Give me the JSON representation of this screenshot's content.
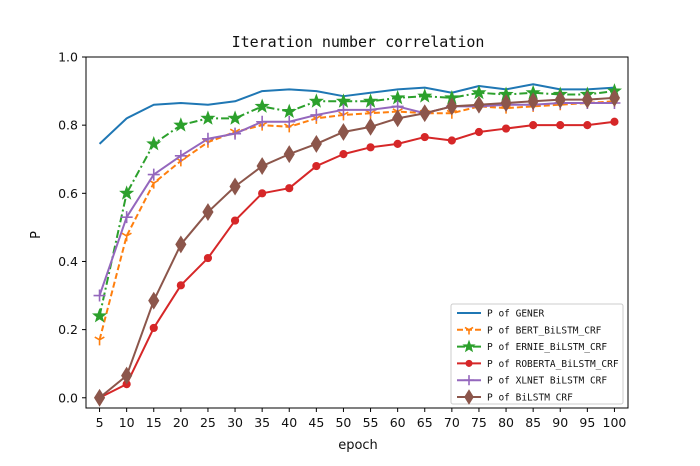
{
  "chart_data": {
    "type": "line",
    "title": "Iteration number correlation",
    "xlabel": "epoch",
    "ylabel": "P",
    "x": [
      5,
      10,
      15,
      20,
      25,
      30,
      35,
      40,
      45,
      50,
      55,
      60,
      65,
      70,
      75,
      80,
      85,
      90,
      95,
      100
    ],
    "xticks": [
      "5",
      "10",
      "15",
      "20",
      "25",
      "30",
      "35",
      "40",
      "45",
      "50",
      "55",
      "60",
      "65",
      "70",
      "75",
      "80",
      "85",
      "90",
      "95",
      "100"
    ],
    "yticks": [
      "0.0",
      "0.2",
      "0.4",
      "0.6",
      "0.8",
      "1.0"
    ],
    "ylim": [
      -0.03,
      1.0
    ],
    "grid": false,
    "legend_position": "lower-right",
    "series": [
      {
        "name": "P of GENER",
        "color": "#1f77b4",
        "line_style": "solid",
        "marker": "none",
        "values": [
          0.745,
          0.82,
          0.86,
          0.865,
          0.86,
          0.87,
          0.9,
          0.905,
          0.9,
          0.885,
          0.895,
          0.905,
          0.91,
          0.895,
          0.915,
          0.905,
          0.92,
          0.905,
          0.905,
          0.91
        ]
      },
      {
        "name": "P of BERT_BiLSTM_CRF",
        "color": "#ff7f0e",
        "line_style": "dashed",
        "marker": "tri_down",
        "values": [
          0.17,
          0.475,
          0.63,
          0.695,
          0.75,
          0.78,
          0.8,
          0.795,
          0.82,
          0.83,
          0.835,
          0.84,
          0.835,
          0.835,
          0.855,
          0.85,
          0.855,
          0.86,
          0.865,
          0.87
        ]
      },
      {
        "name": "P of ERNIE_BiLSTM_CRF",
        "color": "#2ca02c",
        "line_style": "dashdot",
        "marker": "star",
        "values": [
          0.24,
          0.6,
          0.745,
          0.8,
          0.82,
          0.82,
          0.855,
          0.84,
          0.87,
          0.87,
          0.87,
          0.88,
          0.885,
          0.88,
          0.895,
          0.89,
          0.895,
          0.89,
          0.89,
          0.9
        ]
      },
      {
        "name": "P of ROBERTA_BiLSTM_CRF",
        "color": "#d62728",
        "line_style": "solid",
        "marker": "circle",
        "values": [
          0.0,
          0.04,
          0.205,
          0.33,
          0.41,
          0.52,
          0.6,
          0.615,
          0.68,
          0.715,
          0.735,
          0.745,
          0.765,
          0.755,
          0.78,
          0.79,
          0.8,
          0.8,
          0.8,
          0.81
        ]
      },
      {
        "name": "P of XLNET BiLSTM CRF",
        "color": "#9467bd",
        "line_style": "solid",
        "marker": "plus",
        "values": [
          0.3,
          0.53,
          0.655,
          0.71,
          0.76,
          0.775,
          0.81,
          0.81,
          0.83,
          0.845,
          0.845,
          0.855,
          0.835,
          0.855,
          0.855,
          0.86,
          0.86,
          0.865,
          0.865,
          0.865
        ]
      },
      {
        "name": "P of BiLSTM CRF",
        "color": "#8c564b",
        "line_style": "solid",
        "marker": "diamond",
        "values": [
          0.0,
          0.065,
          0.285,
          0.45,
          0.545,
          0.62,
          0.68,
          0.715,
          0.745,
          0.78,
          0.795,
          0.82,
          0.835,
          0.855,
          0.86,
          0.865,
          0.87,
          0.875,
          0.875,
          0.88
        ]
      }
    ]
  }
}
